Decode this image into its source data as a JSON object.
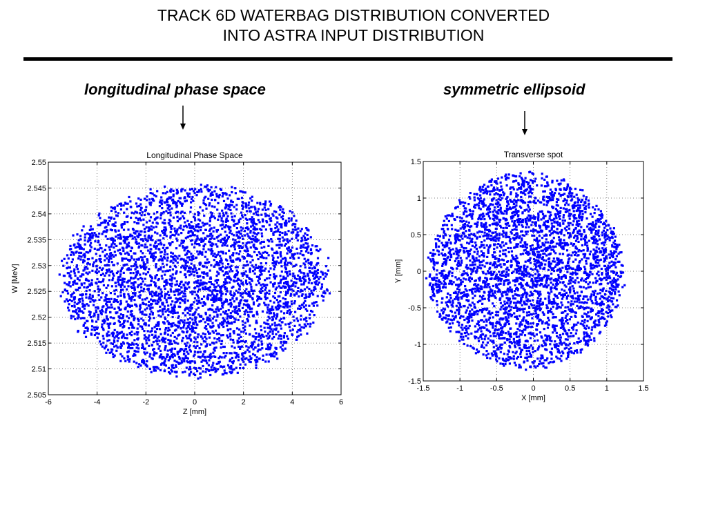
{
  "slide": {
    "title_line1": "TRACK 6D WATERBAG DISTRIBUTION CONVERTED",
    "title_line2": "INTO ASTRA INPUT DISTRIBUTION"
  },
  "captions": {
    "left": "longitudinal phase space",
    "right": "symmetric ellipsoid"
  },
  "colors": {
    "marker": "#0000ff",
    "grid": "#555555",
    "rule": "#000000"
  },
  "chart_data": [
    {
      "type": "scatter",
      "title": "Longitudinal Phase Space",
      "xlabel": "Z [mm]",
      "ylabel": "W [MeV]",
      "xlim": [
        -6,
        6
      ],
      "ylim": [
        2.505,
        2.55
      ],
      "xticks": [
        -6,
        -4,
        -2,
        0,
        2,
        4,
        6
      ],
      "yticks": [
        2.505,
        2.51,
        2.515,
        2.52,
        2.525,
        2.53,
        2.535,
        2.54,
        2.545,
        2.55
      ],
      "xtick_labels": [
        "-6",
        "-4",
        "-2",
        "0",
        "2",
        "4",
        "6"
      ],
      "ytick_labels": [
        "2.505",
        "2.51",
        "2.515",
        "2.52",
        "2.525",
        "2.53",
        "2.535",
        "2.54",
        "2.545",
        "2.55"
      ],
      "grid": true,
      "marker": "dot",
      "distribution": {
        "shape": "waterbag ellipse",
        "center": [
          0,
          2.527
        ],
        "semi_axes": [
          5.5,
          0.0185
        ],
        "points": 4000
      }
    },
    {
      "type": "scatter",
      "title": "Transverse spot",
      "xlabel": "X [mm]",
      "ylabel": "Y [mm]",
      "xlim": [
        -1.5,
        1.5
      ],
      "ylim": [
        -1.5,
        1.5
      ],
      "xticks": [
        -1.5,
        -1,
        -0.5,
        0,
        0.5,
        1,
        1.5
      ],
      "yticks": [
        -1.5,
        -1,
        -0.5,
        0,
        0.5,
        1,
        1.5
      ],
      "xtick_labels": [
        "-1.5",
        "-1",
        "-0.5",
        "0",
        "0.5",
        "1",
        "1.5"
      ],
      "ytick_labels": [
        "-1.5",
        "-1",
        "-0.5",
        "0",
        "0.5",
        "1",
        "1.5"
      ],
      "grid": true,
      "marker": "dot",
      "distribution": {
        "shape": "waterbag circle",
        "center": [
          -0.1,
          0
        ],
        "semi_axes": [
          1.33,
          1.33
        ],
        "points": 3500
      }
    }
  ]
}
